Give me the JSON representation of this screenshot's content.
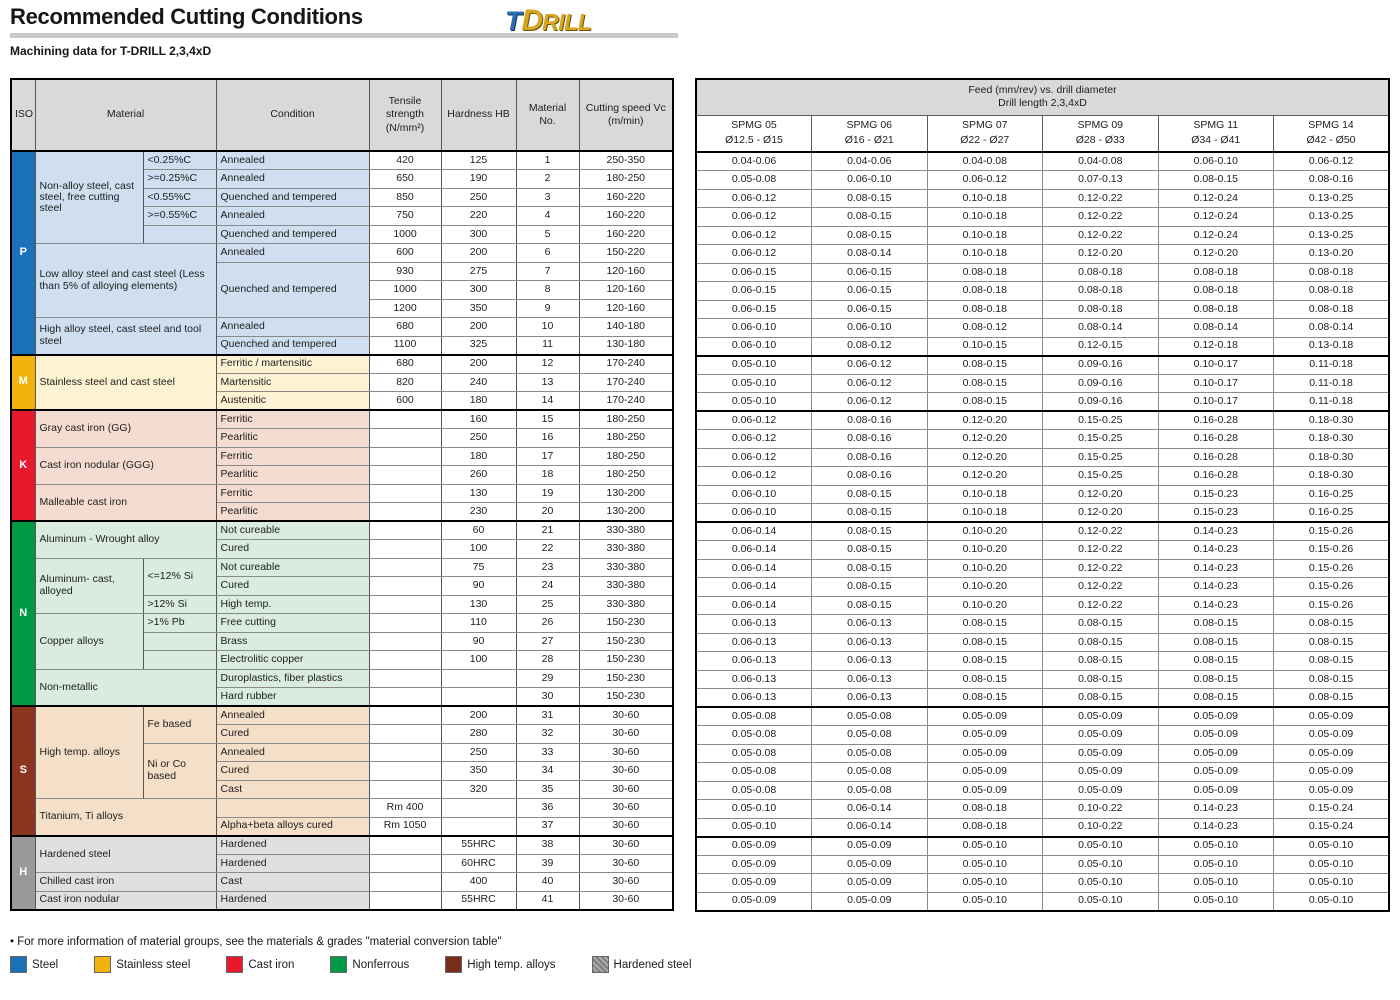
{
  "header": {
    "title": "Recommended Cutting Conditions",
    "subtitle": "Machining data for T-DRILL 2,3,4xD",
    "logo": {
      "part1": "T",
      "part2": "D",
      "part3": "RILL"
    }
  },
  "colors": {
    "bands": {
      "P": "#1b72b8",
      "M": "#f2b30c",
      "K": "#e8192c",
      "N": "#009a47",
      "S": "#8a3520",
      "H": "#9a9a9a"
    },
    "tints": {
      "P": "#cfdff0",
      "M": "#fdf2d2",
      "K": "#f4dcd0",
      "N": "#d9ecdf",
      "S": "#f4dfc8",
      "H": "#e0e0e0"
    },
    "header_bg": "#d9d9d9"
  },
  "left_table": {
    "headers": [
      {
        "t": "ISO",
        "cs": 1
      },
      {
        "t": "Material",
        "cs": 2
      },
      {
        "t": "Condition",
        "cs": 1
      },
      {
        "t": "Tensile strength (N/mm²)",
        "cs": 1
      },
      {
        "t": "Hardness HB",
        "cs": 1
      },
      {
        "t": "Material No.",
        "cs": 1
      },
      {
        "t": "Cutting speed Vc (m/min)",
        "cs": 1
      }
    ]
  },
  "right_table": {
    "title_line1": "Feed (mm/rev) vs. drill diameter",
    "title_line2": "Drill length 2,3,4xD",
    "columns": [
      {
        "name": "SPMG 05",
        "range": "Ø12.5 - Ø15"
      },
      {
        "name": "SPMG 06",
        "range": "Ø16 - Ø21"
      },
      {
        "name": "SPMG 07",
        "range": "Ø22 - Ø27"
      },
      {
        "name": "SPMG 09",
        "range": "Ø28 - Ø33"
      },
      {
        "name": "SPMG 11",
        "range": "Ø34 - Ø41"
      },
      {
        "name": "SPMG 14",
        "range": "Ø42 - Ø50"
      }
    ]
  },
  "rows": [
    {
      "g": "P",
      "b": "iso",
      "iso": {
        "k": "P",
        "span": 11
      },
      "mat": {
        "t": "Non-alloy steel, cast steel, free cutting steel",
        "span": 5,
        "cs": 1
      },
      "note": {
        "t": "<0.25%C",
        "span": 1
      },
      "cond": {
        "t": "Annealed",
        "span": 1
      },
      "ts": "420",
      "hb": "125",
      "no": "1",
      "vc": "250-350",
      "feeds": [
        "0.04-0.06",
        "0.04-0.06",
        "0.04-0.08",
        "0.04-0.08",
        "0.06-0.10",
        "0.06-0.12"
      ]
    },
    {
      "g": "P",
      "note": {
        "t": ">=0.25%C",
        "span": 1
      },
      "cond": {
        "t": "Annealed",
        "span": 1
      },
      "ts": "650",
      "hb": "190",
      "no": "2",
      "vc": "180-250",
      "feeds": [
        "0.05-0.08",
        "0.06-0.10",
        "0.06-0.12",
        "0.07-0.13",
        "0.08-0.15",
        "0.08-0.16"
      ]
    },
    {
      "g": "P",
      "note": {
        "t": "<0.55%C",
        "span": 1
      },
      "cond": {
        "t": "Quenched and tempered",
        "span": 1
      },
      "ts": "850",
      "hb": "250",
      "no": "3",
      "vc": "160-220",
      "feeds": [
        "0.06-0.12",
        "0.08-0.15",
        "0.10-0.18",
        "0.12-0.22",
        "0.12-0.24",
        "0.13-0.25"
      ]
    },
    {
      "g": "P",
      "note": {
        "t": ">=0.55%C",
        "span": 1
      },
      "cond": {
        "t": "Annealed",
        "span": 1
      },
      "ts": "750",
      "hb": "220",
      "no": "4",
      "vc": "160-220",
      "feeds": [
        "0.06-0.12",
        "0.08-0.15",
        "0.10-0.18",
        "0.12-0.22",
        "0.12-0.24",
        "0.13-0.25"
      ]
    },
    {
      "g": "P",
      "note": {
        "t": "",
        "span": 1
      },
      "cond": {
        "t": "Quenched and tempered",
        "span": 1
      },
      "ts": "1000",
      "hb": "300",
      "no": "5",
      "vc": "160-220",
      "feeds": [
        "0.06-0.12",
        "0.08-0.15",
        "0.10-0.18",
        "0.12-0.22",
        "0.12-0.24",
        "0.13-0.25"
      ]
    },
    {
      "g": "P",
      "b": "grp",
      "mat": {
        "t": "Low alloy steel and cast steel (Less than 5% of alloying elements)",
        "span": 4,
        "cs": 2
      },
      "cond": {
        "t": "Annealed",
        "span": 1
      },
      "ts": "600",
      "hb": "200",
      "no": "6",
      "vc": "150-220",
      "feeds": [
        "0.06-0.12",
        "0.08-0.14",
        "0.10-0.18",
        "0.12-0.20",
        "0.12-0.20",
        "0.13-0.20"
      ]
    },
    {
      "g": "P",
      "cond": {
        "t": "Quenched and tempered",
        "span": 3
      },
      "ts": "930",
      "hb": "275",
      "no": "7",
      "vc": "120-160",
      "feeds": [
        "0.06-0.15",
        "0.06-0.15",
        "0.08-0.18",
        "0.08-0.18",
        "0.08-0.18",
        "0.08-0.18"
      ]
    },
    {
      "g": "P",
      "ts": "1000",
      "hb": "300",
      "no": "8",
      "vc": "120-160",
      "feeds": [
        "0.06-0.15",
        "0.06-0.15",
        "0.08-0.18",
        "0.08-0.18",
        "0.08-0.18",
        "0.08-0.18"
      ]
    },
    {
      "g": "P",
      "ts": "1200",
      "hb": "350",
      "no": "9",
      "vc": "120-160",
      "feeds": [
        "0.06-0.15",
        "0.06-0.15",
        "0.08-0.18",
        "0.08-0.18",
        "0.08-0.18",
        "0.08-0.18"
      ]
    },
    {
      "g": "P",
      "b": "grp",
      "mat": {
        "t": "High alloy steel, cast steel and tool steel",
        "span": 2,
        "cs": 2
      },
      "cond": {
        "t": "Annealed",
        "span": 1
      },
      "ts": "680",
      "hb": "200",
      "no": "10",
      "vc": "140-180",
      "feeds": [
        "0.06-0.10",
        "0.06-0.10",
        "0.08-0.12",
        "0.08-0.14",
        "0.08-0.14",
        "0.08-0.14"
      ]
    },
    {
      "g": "P",
      "cond": {
        "t": "Quenched and tempered",
        "span": 1
      },
      "ts": "1100",
      "hb": "325",
      "no": "11",
      "vc": "130-180",
      "feeds": [
        "0.06-0.10",
        "0.08-0.12",
        "0.10-0.15",
        "0.12-0.15",
        "0.12-0.18",
        "0.13-0.18"
      ]
    },
    {
      "g": "M",
      "b": "iso",
      "iso": {
        "k": "M",
        "span": 3
      },
      "mat": {
        "t": "Stainless steel and cast steel",
        "span": 3,
        "cs": 2
      },
      "cond": {
        "t": "Ferritic / martensitic",
        "span": 1
      },
      "ts": "680",
      "hb": "200",
      "no": "12",
      "vc": "170-240",
      "feeds": [
        "0.05-0.10",
        "0.06-0.12",
        "0.08-0.15",
        "0.09-0.16",
        "0.10-0.17",
        "0.11-0.18"
      ]
    },
    {
      "g": "M",
      "cond": {
        "t": "Martensitic",
        "span": 1
      },
      "ts": "820",
      "hb": "240",
      "no": "13",
      "vc": "170-240",
      "feeds": [
        "0.05-0.10",
        "0.06-0.12",
        "0.08-0.15",
        "0.09-0.16",
        "0.10-0.17",
        "0.11-0.18"
      ]
    },
    {
      "g": "M",
      "cond": {
        "t": "Austenitic",
        "span": 1
      },
      "ts": "600",
      "hb": "180",
      "no": "14",
      "vc": "170-240",
      "feeds": [
        "0.05-0.10",
        "0.06-0.12",
        "0.08-0.15",
        "0.09-0.16",
        "0.10-0.17",
        "0.11-0.18"
      ]
    },
    {
      "g": "K",
      "b": "iso",
      "iso": {
        "k": "K",
        "span": 6
      },
      "mat": {
        "t": "Gray cast iron (GG)",
        "span": 2,
        "cs": 2
      },
      "cond": {
        "t": "Ferritic",
        "span": 1
      },
      "ts": "",
      "hb": "160",
      "no": "15",
      "vc": "180-250",
      "feeds": [
        "0.06-0.12",
        "0.08-0.16",
        "0.12-0.20",
        "0.15-0.25",
        "0.16-0.28",
        "0.18-0.30"
      ]
    },
    {
      "g": "K",
      "cond": {
        "t": "Pearlitic",
        "span": 1
      },
      "ts": "",
      "hb": "250",
      "no": "16",
      "vc": "180-250",
      "feeds": [
        "0.06-0.12",
        "0.08-0.16",
        "0.12-0.20",
        "0.15-0.25",
        "0.16-0.28",
        "0.18-0.30"
      ]
    },
    {
      "g": "K",
      "b": "grp",
      "mat": {
        "t": "Cast iron nodular (GGG)",
        "span": 2,
        "cs": 2
      },
      "cond": {
        "t": "Ferritic",
        "span": 1
      },
      "ts": "",
      "hb": "180",
      "no": "17",
      "vc": "180-250",
      "feeds": [
        "0.06-0.12",
        "0.08-0.16",
        "0.12-0.20",
        "0.15-0.25",
        "0.16-0.28",
        "0.18-0.30"
      ]
    },
    {
      "g": "K",
      "cond": {
        "t": "Pearlitic",
        "span": 1
      },
      "ts": "",
      "hb": "260",
      "no": "18",
      "vc": "180-250",
      "feeds": [
        "0.06-0.12",
        "0.08-0.16",
        "0.12-0.20",
        "0.15-0.25",
        "0.16-0.28",
        "0.18-0.30"
      ]
    },
    {
      "g": "K",
      "b": "grp",
      "mat": {
        "t": "Malleable cast iron",
        "span": 2,
        "cs": 2
      },
      "cond": {
        "t": "Ferritic",
        "span": 1
      },
      "ts": "",
      "hb": "130",
      "no": "19",
      "vc": "130-200",
      "feeds": [
        "0.06-0.10",
        "0.08-0.15",
        "0.10-0.18",
        "0.12-0.20",
        "0.15-0.23",
        "0.16-0.25"
      ]
    },
    {
      "g": "K",
      "cond": {
        "t": "Pearlitic",
        "span": 1
      },
      "ts": "",
      "hb": "230",
      "no": "20",
      "vc": "130-200",
      "feeds": [
        "0.06-0.10",
        "0.08-0.15",
        "0.10-0.18",
        "0.12-0.20",
        "0.15-0.23",
        "0.16-0.25"
      ]
    },
    {
      "g": "N",
      "b": "iso",
      "iso": {
        "k": "N",
        "span": 10
      },
      "mat": {
        "t": "Aluminum - Wrought alloy",
        "span": 2,
        "cs": 2
      },
      "cond": {
        "t": "Not cureable",
        "span": 1
      },
      "ts": "",
      "hb": "60",
      "no": "21",
      "vc": "330-380",
      "feeds": [
        "0.06-0.14",
        "0.08-0.15",
        "0.10-0.20",
        "0.12-0.22",
        "0.14-0.23",
        "0.15-0.26"
      ]
    },
    {
      "g": "N",
      "cond": {
        "t": "Cured",
        "span": 1
      },
      "ts": "",
      "hb": "100",
      "no": "22",
      "vc": "330-380",
      "feeds": [
        "0.06-0.14",
        "0.08-0.15",
        "0.10-0.20",
        "0.12-0.22",
        "0.14-0.23",
        "0.15-0.26"
      ]
    },
    {
      "g": "N",
      "b": "grp",
      "mat": {
        "t": "Aluminum- cast, alloyed",
        "span": 3,
        "cs": 1
      },
      "note": {
        "t": "<=12% Si",
        "span": 2
      },
      "cond": {
        "t": "Not cureable",
        "span": 1
      },
      "ts": "",
      "hb": "75",
      "no": "23",
      "vc": "330-380",
      "feeds": [
        "0.06-0.14",
        "0.08-0.15",
        "0.10-0.20",
        "0.12-0.22",
        "0.14-0.23",
        "0.15-0.26"
      ]
    },
    {
      "g": "N",
      "cond": {
        "t": "Cured",
        "span": 1
      },
      "ts": "",
      "hb": "90",
      "no": "24",
      "vc": "330-380",
      "feeds": [
        "0.06-0.14",
        "0.08-0.15",
        "0.10-0.20",
        "0.12-0.22",
        "0.14-0.23",
        "0.15-0.26"
      ]
    },
    {
      "g": "N",
      "note": {
        "t": ">12% Si",
        "span": 1
      },
      "cond": {
        "t": "High temp.",
        "span": 1
      },
      "ts": "",
      "hb": "130",
      "no": "25",
      "vc": "330-380",
      "feeds": [
        "0.06-0.14",
        "0.08-0.15",
        "0.10-0.20",
        "0.12-0.22",
        "0.14-0.23",
        "0.15-0.26"
      ]
    },
    {
      "g": "N",
      "b": "grp",
      "mat": {
        "t": "Copper alloys",
        "span": 3,
        "cs": 1
      },
      "note": {
        "t": ">1% Pb",
        "span": 1
      },
      "cond": {
        "t": "Free cutting",
        "span": 1
      },
      "ts": "",
      "hb": "110",
      "no": "26",
      "vc": "150-230",
      "feeds": [
        "0.06-0.13",
        "0.06-0.13",
        "0.08-0.15",
        "0.08-0.15",
        "0.08-0.15",
        "0.08-0.15"
      ]
    },
    {
      "g": "N",
      "note": {
        "t": "",
        "span": 1
      },
      "cond": {
        "t": "Brass",
        "span": 1
      },
      "ts": "",
      "hb": "90",
      "no": "27",
      "vc": "150-230",
      "feeds": [
        "0.06-0.13",
        "0.06-0.13",
        "0.08-0.15",
        "0.08-0.15",
        "0.08-0.15",
        "0.08-0.15"
      ]
    },
    {
      "g": "N",
      "note": {
        "t": "",
        "span": 1
      },
      "cond": {
        "t": "Electrolitic copper",
        "span": 1
      },
      "ts": "",
      "hb": "100",
      "no": "28",
      "vc": "150-230",
      "feeds": [
        "0.06-0.13",
        "0.06-0.13",
        "0.08-0.15",
        "0.08-0.15",
        "0.08-0.15",
        "0.08-0.15"
      ]
    },
    {
      "g": "N",
      "b": "grp",
      "mat": {
        "t": "Non-metallic",
        "span": 2,
        "cs": 2
      },
      "cond": {
        "t": "Duroplastics, fiber plastics",
        "span": 1
      },
      "ts": "",
      "hb": "",
      "no": "29",
      "vc": "150-230",
      "feeds": [
        "0.06-0.13",
        "0.06-0.13",
        "0.08-0.15",
        "0.08-0.15",
        "0.08-0.15",
        "0.08-0.15"
      ]
    },
    {
      "g": "N",
      "cond": {
        "t": "Hard rubber",
        "span": 1
      },
      "ts": "",
      "hb": "",
      "no": "30",
      "vc": "150-230",
      "feeds": [
        "0.06-0.13",
        "0.06-0.13",
        "0.08-0.15",
        "0.08-0.15",
        "0.08-0.15",
        "0.08-0.15"
      ]
    },
    {
      "g": "S",
      "b": "iso",
      "iso": {
        "k": "S",
        "span": 7
      },
      "mat": {
        "t": "High temp. alloys",
        "span": 5,
        "cs": 1
      },
      "note": {
        "t": "Fe based",
        "span": 2
      },
      "cond": {
        "t": "Annealed",
        "span": 1
      },
      "ts": "",
      "hb": "200",
      "no": "31",
      "vc": "30-60",
      "feeds": [
        "0.05-0.08",
        "0.05-0.08",
        "0.05-0.09",
        "0.05-0.09",
        "0.05-0.09",
        "0.05-0.09"
      ]
    },
    {
      "g": "S",
      "cond": {
        "t": "Cured",
        "span": 1
      },
      "ts": "",
      "hb": "280",
      "no": "32",
      "vc": "30-60",
      "feeds": [
        "0.05-0.08",
        "0.05-0.08",
        "0.05-0.09",
        "0.05-0.09",
        "0.05-0.09",
        "0.05-0.09"
      ]
    },
    {
      "g": "S",
      "note": {
        "t": "Ni or Co based",
        "span": 3
      },
      "cond": {
        "t": "Annealed",
        "span": 1
      },
      "ts": "",
      "hb": "250",
      "no": "33",
      "vc": "30-60",
      "feeds": [
        "0.05-0.08",
        "0.05-0.08",
        "0.05-0.09",
        "0.05-0.09",
        "0.05-0.09",
        "0.05-0.09"
      ]
    },
    {
      "g": "S",
      "cond": {
        "t": "Cured",
        "span": 1
      },
      "ts": "",
      "hb": "350",
      "no": "34",
      "vc": "30-60",
      "feeds": [
        "0.05-0.08",
        "0.05-0.08",
        "0.05-0.09",
        "0.05-0.09",
        "0.05-0.09",
        "0.05-0.09"
      ]
    },
    {
      "g": "S",
      "cond": {
        "t": "Cast",
        "span": 1
      },
      "ts": "",
      "hb": "320",
      "no": "35",
      "vc": "30-60",
      "feeds": [
        "0.05-0.08",
        "0.05-0.08",
        "0.05-0.09",
        "0.05-0.09",
        "0.05-0.09",
        "0.05-0.09"
      ]
    },
    {
      "g": "S",
      "b": "grp",
      "mat": {
        "t": "Titanium, Ti alloys",
        "span": 2,
        "cs": 2
      },
      "cond": {
        "t": "",
        "span": 1
      },
      "ts": "Rm 400",
      "hb": "",
      "no": "36",
      "vc": "30-60",
      "feeds": [
        "0.05-0.10",
        "0.06-0.14",
        "0.08-0.18",
        "0.10-0.22",
        "0.14-0.23",
        "0.15-0.24"
      ]
    },
    {
      "g": "S",
      "cond": {
        "t": "Alpha+beta alloys cured",
        "span": 1
      },
      "ts": "Rm 1050",
      "hb": "",
      "no": "37",
      "vc": "30-60",
      "feeds": [
        "0.05-0.10",
        "0.06-0.14",
        "0.08-0.18",
        "0.10-0.22",
        "0.14-0.23",
        "0.15-0.24"
      ]
    },
    {
      "g": "H",
      "b": "iso",
      "iso": {
        "k": "H",
        "span": 4
      },
      "mat": {
        "t": "Hardened steel",
        "span": 2,
        "cs": 2
      },
      "cond": {
        "t": "Hardened",
        "span": 1
      },
      "ts": "",
      "hb": "55HRC",
      "no": "38",
      "vc": "30-60",
      "feeds": [
        "0.05-0.09",
        "0.05-0.09",
        "0.05-0.10",
        "0.05-0.10",
        "0.05-0.10",
        "0.05-0.10"
      ]
    },
    {
      "g": "H",
      "cond": {
        "t": "Hardened",
        "span": 1
      },
      "ts": "",
      "hb": "60HRC",
      "no": "39",
      "vc": "30-60",
      "feeds": [
        "0.05-0.09",
        "0.05-0.09",
        "0.05-0.10",
        "0.05-0.10",
        "0.05-0.10",
        "0.05-0.10"
      ]
    },
    {
      "g": "H",
      "b": "grp",
      "mat": {
        "t": "Chilled cast iron",
        "span": 1,
        "cs": 2
      },
      "cond": {
        "t": "Cast",
        "span": 1
      },
      "ts": "",
      "hb": "400",
      "no": "40",
      "vc": "30-60",
      "feeds": [
        "0.05-0.09",
        "0.05-0.09",
        "0.05-0.10",
        "0.05-0.10",
        "0.05-0.10",
        "0.05-0.10"
      ]
    },
    {
      "g": "H",
      "b": "grp",
      "mat": {
        "t": "Cast iron nodular",
        "span": 1,
        "cs": 2
      },
      "cond": {
        "t": "Hardened",
        "span": 1
      },
      "ts": "",
      "hb": "55HRC",
      "no": "41",
      "vc": "30-60",
      "feeds": [
        "0.05-0.09",
        "0.05-0.09",
        "0.05-0.10",
        "0.05-0.10",
        "0.05-0.10",
        "0.05-0.10"
      ]
    }
  ],
  "footer": {
    "note": "• For more information of material groups, see the materials & grades \"material conversion table\"",
    "legend": [
      {
        "label": "Steel",
        "color": "#1b72b8"
      },
      {
        "label": "Stainless steel",
        "color": "#f2b30c"
      },
      {
        "label": "Cast iron",
        "color": "#e8192c"
      },
      {
        "label": "Nonferrous",
        "color": "#009a47"
      },
      {
        "label": "High temp. alloys",
        "color": "#7b2d1b"
      },
      {
        "label": "Hardened steel",
        "color": "#8f8f8f",
        "pattern": true
      }
    ]
  }
}
